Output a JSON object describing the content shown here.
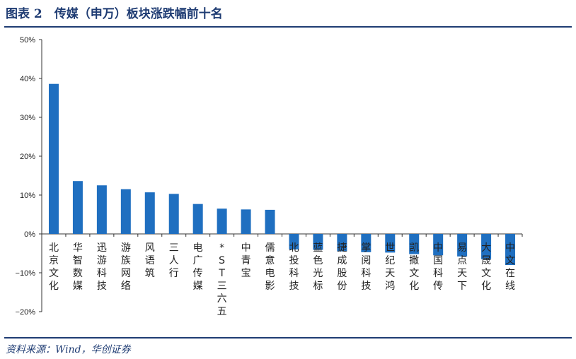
{
  "header": {
    "title": "图表 2　传媒（申万）板块涨跌幅前十名"
  },
  "footer": {
    "source": "资料来源：Wind，华创证券"
  },
  "colors": {
    "bar": "#1f6fc0",
    "rule": "#1f3c73",
    "axis": "#333333"
  },
  "chart_data": {
    "type": "bar",
    "title": "",
    "xlabel": "",
    "ylabel": "",
    "ylim": [
      -0.2,
      0.5
    ],
    "yticks": [
      0.5,
      0.4,
      0.3,
      0.2,
      0.1,
      0.0,
      -0.1,
      -0.2
    ],
    "ytick_labels": [
      "50%",
      "40%",
      "30%",
      "20%",
      "10%",
      "0%",
      "−10%",
      "−20%"
    ],
    "categories": [
      "北京文化",
      "华智数媒",
      "迅游科技",
      "游族网络",
      "风语筑",
      "三人行",
      "电广传媒",
      "*ST三六五",
      "中青宝",
      "儒意电影",
      "北投科技",
      "蓝色光标",
      "捷成股份",
      "掌阅科技",
      "世纪天鸿",
      "凯撒文化",
      "中国科传",
      "易点天下",
      "大晟文化",
      "中文在线"
    ],
    "values": [
      0.386,
      0.136,
      0.125,
      0.115,
      0.107,
      0.103,
      0.077,
      0.065,
      0.063,
      0.062,
      -0.04,
      -0.041,
      -0.045,
      -0.047,
      -0.048,
      -0.052,
      -0.055,
      -0.058,
      -0.065,
      -0.08
    ],
    "grid": false,
    "legend": "none"
  }
}
